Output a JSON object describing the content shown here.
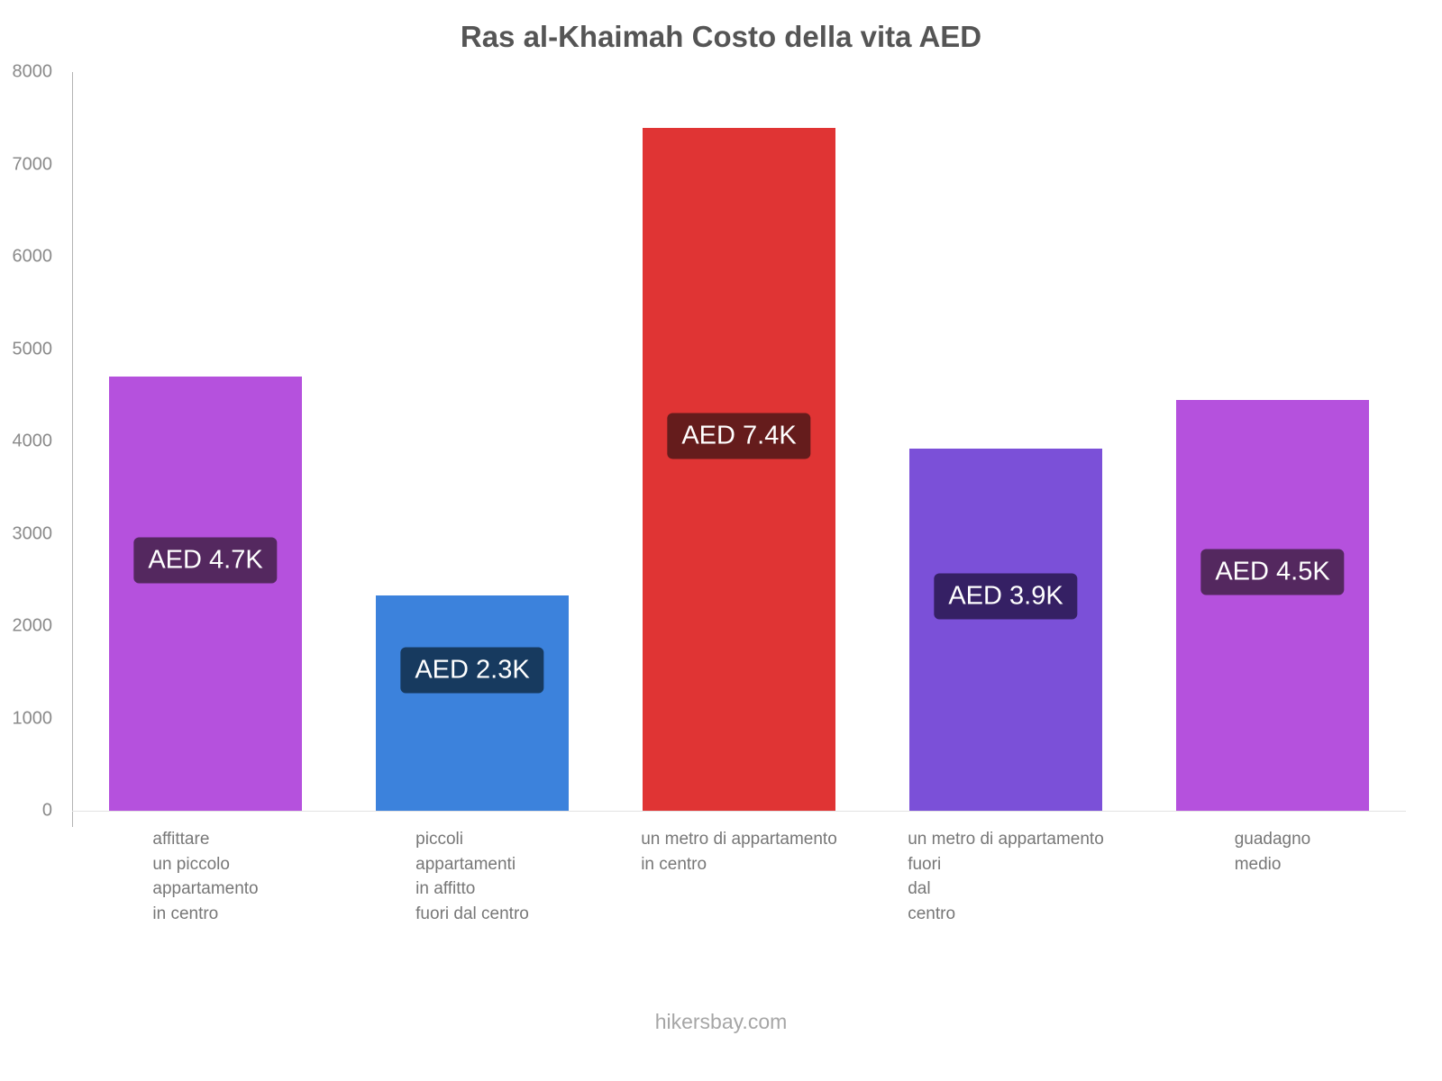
{
  "page": {
    "footer": "hikersbay.com"
  },
  "chart_data": {
    "type": "bar",
    "title": "Ras al-Khaimah Costo della vita AED",
    "categories": [
      [
        "affittare",
        "un piccolo",
        "appartamento",
        "in centro"
      ],
      [
        "piccoli",
        "appartamenti",
        "in affitto",
        "fuori dal centro"
      ],
      [
        "un metro di appartamento",
        "in centro"
      ],
      [
        "un metro di appartamento",
        "fuori",
        "dal",
        "centro"
      ],
      [
        "guadagno",
        "medio"
      ]
    ],
    "values": [
      4700,
      2330,
      7400,
      3920,
      4450
    ],
    "value_labels": [
      "AED 4.7K",
      "AED 2.3K",
      "AED 7.4K",
      "AED 3.9K",
      "AED 4.5K"
    ],
    "bar_colors": [
      "#b551dd",
      "#3c82dc",
      "#e03434",
      "#7b50d8",
      "#b551dd"
    ],
    "label_bg_colors": [
      "#54285f",
      "#173a5f",
      "#651c1c",
      "#352064",
      "#54285f"
    ],
    "xlabel": "",
    "ylabel": "",
    "ylim": [
      0,
      8000
    ],
    "yticks": [
      0,
      1000,
      2000,
      3000,
      4000,
      5000,
      6000,
      7000,
      8000
    ],
    "grid": false,
    "legend": false
  }
}
